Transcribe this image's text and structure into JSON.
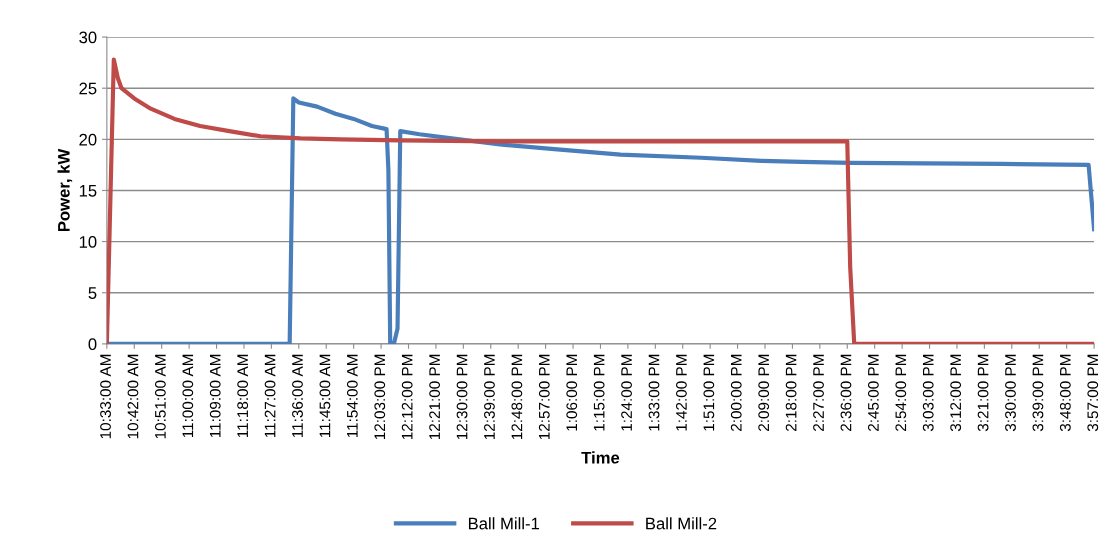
{
  "chart_data": {
    "type": "line",
    "xlabel": "Time",
    "ylabel": "Power, kW",
    "xlim": [
      10.55,
      15.95
    ],
    "ylim": [
      0,
      30
    ],
    "yticks": [
      0,
      5,
      10,
      15,
      20,
      25,
      30
    ],
    "xticks": [
      {
        "value": 10.55,
        "label": "10:33:00 AM"
      },
      {
        "value": 10.7,
        "label": "10:42:00 AM"
      },
      {
        "value": 10.85,
        "label": "10:51:00 AM"
      },
      {
        "value": 11.0,
        "label": "11:00:00 AM"
      },
      {
        "value": 11.15,
        "label": "11:09:00 AM"
      },
      {
        "value": 11.3,
        "label": "11:18:00 AM"
      },
      {
        "value": 11.45,
        "label": "11:27:00 AM"
      },
      {
        "value": 11.6,
        "label": "11:36:00 AM"
      },
      {
        "value": 11.75,
        "label": "11:45:00 AM"
      },
      {
        "value": 11.9,
        "label": "11:54:00 AM"
      },
      {
        "value": 12.05,
        "label": "12:03:00 PM"
      },
      {
        "value": 12.2,
        "label": "12:12:00 PM"
      },
      {
        "value": 12.35,
        "label": "12:21:00 PM"
      },
      {
        "value": 12.5,
        "label": "12:30:00 PM"
      },
      {
        "value": 12.65,
        "label": "12:39:00 PM"
      },
      {
        "value": 12.8,
        "label": "12:48:00 PM"
      },
      {
        "value": 12.95,
        "label": "12:57:00 PM"
      },
      {
        "value": 13.1,
        "label": "1:06:00 PM"
      },
      {
        "value": 13.25,
        "label": "1:15:00 PM"
      },
      {
        "value": 13.4,
        "label": "1:24:00 PM"
      },
      {
        "value": 13.55,
        "label": "1:33:00 PM"
      },
      {
        "value": 13.7,
        "label": "1:42:00 PM"
      },
      {
        "value": 13.85,
        "label": "1:51:00 PM"
      },
      {
        "value": 14.0,
        "label": "2:00:00 PM"
      },
      {
        "value": 14.15,
        "label": "2:09:00 PM"
      },
      {
        "value": 14.3,
        "label": "2:18:00 PM"
      },
      {
        "value": 14.45,
        "label": "2:27:00 PM"
      },
      {
        "value": 14.6,
        "label": "2:36:00 PM"
      },
      {
        "value": 14.75,
        "label": "2:45:00 PM"
      },
      {
        "value": 14.9,
        "label": "2:54:00 PM"
      },
      {
        "value": 15.05,
        "label": "3:03:00 PM"
      },
      {
        "value": 15.2,
        "label": "3:12:00 PM"
      },
      {
        "value": 15.35,
        "label": "3:21:00 PM"
      },
      {
        "value": 15.5,
        "label": "3:30:00 PM"
      },
      {
        "value": 15.65,
        "label": "3:39:00 PM"
      },
      {
        "value": 15.8,
        "label": "3:48:00 PM"
      },
      {
        "value": 15.95,
        "label": "3:57:00 PM"
      }
    ],
    "grid": "y",
    "legend": "bottom",
    "marker": "none",
    "line_style": "solid",
    "series": [
      {
        "name": "Ball Mill-1",
        "color": "#4a7ebb",
        "x": [
          10.55,
          11.55,
          11.57,
          11.6,
          11.7,
          11.8,
          11.9,
          12.0,
          12.08,
          12.09,
          12.1,
          12.12,
          12.14,
          12.155,
          12.26,
          12.48,
          12.7,
          13.03,
          13.36,
          13.8,
          14.13,
          14.35,
          14.62,
          15.44,
          15.92,
          15.95
        ],
        "values": [
          0,
          0,
          24,
          23.6,
          23.2,
          22.5,
          22,
          21.3,
          21,
          17,
          0,
          0,
          1.5,
          20.8,
          20.5,
          20,
          19.5,
          19,
          18.5,
          18.2,
          17.9,
          17.8,
          17.7,
          17.6,
          17.5,
          11.2
        ]
      },
      {
        "name": "Ball Mill-2",
        "color": "#be4b48",
        "x": [
          10.55,
          10.588,
          10.61,
          10.63,
          10.7,
          10.79,
          10.92,
          11.06,
          11.22,
          11.39,
          11.61,
          11.83,
          12.155,
          12.7,
          14.6,
          14.616,
          14.638,
          15.95
        ],
        "values": [
          0,
          27.8,
          26,
          25,
          24,
          23,
          22,
          21.3,
          20.8,
          20.3,
          20.1,
          20,
          19.9,
          19.8,
          19.8,
          7.5,
          0,
          0
        ]
      }
    ]
  }
}
